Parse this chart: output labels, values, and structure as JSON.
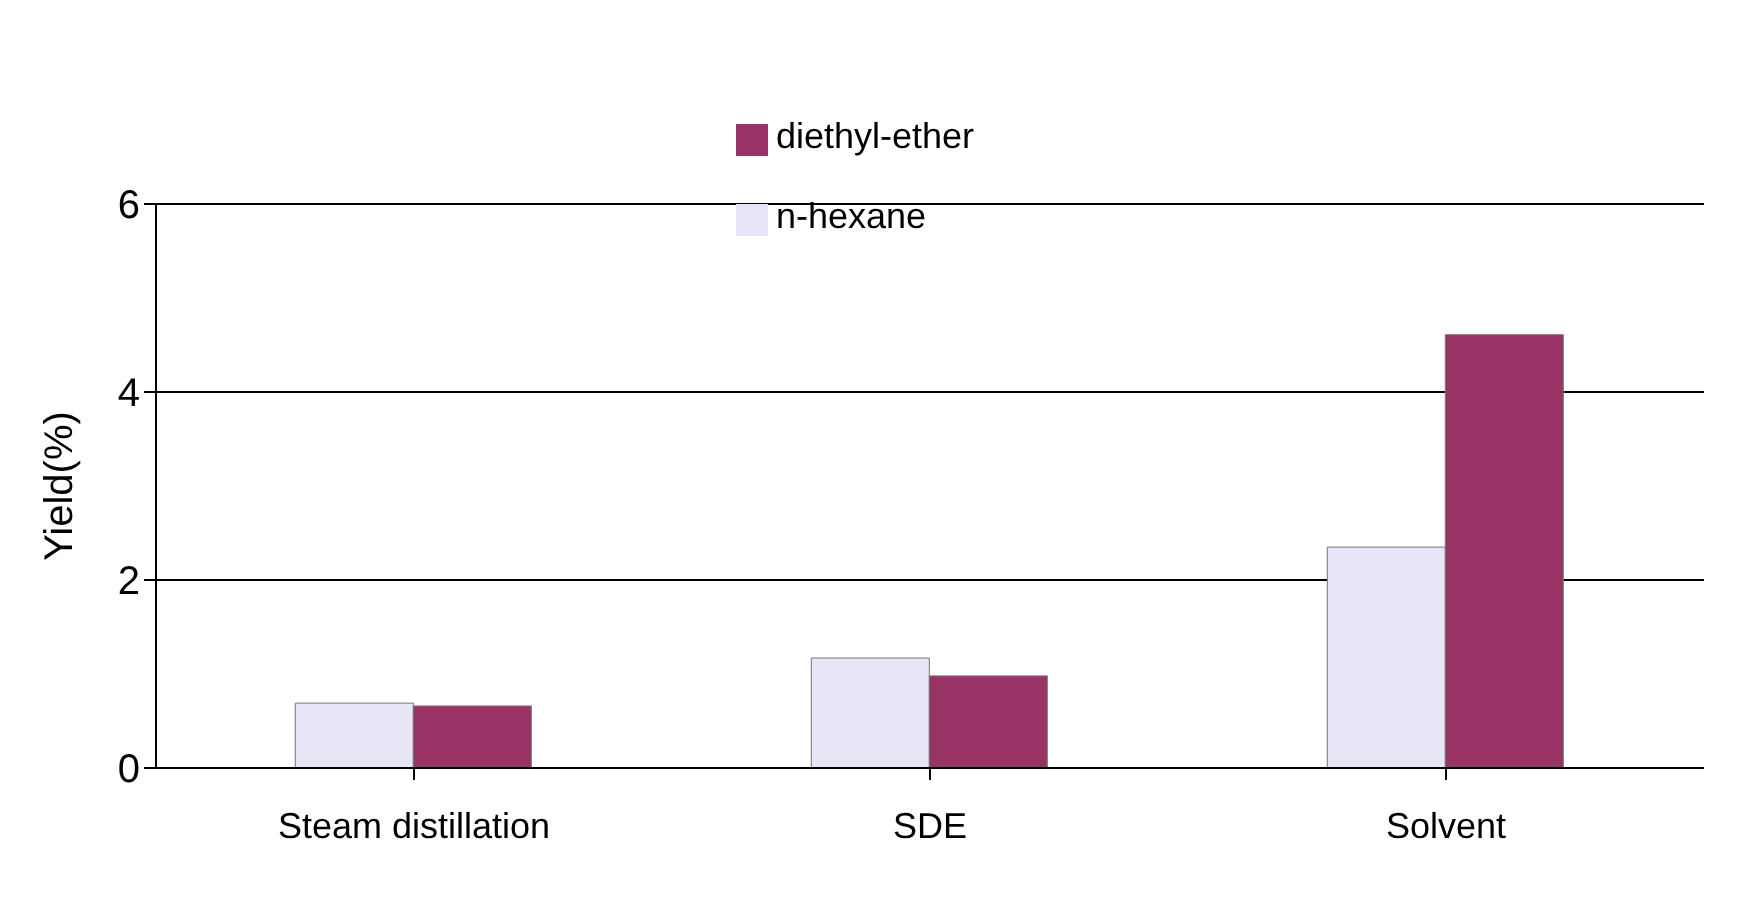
{
  "chart_data": {
    "type": "bar",
    "ylabel": "Yield(%)",
    "categories": [
      "Steam distillation",
      "SDE",
      "Solvent"
    ],
    "series": [
      {
        "name": "n-hexane",
        "color": "#e6e6f7",
        "values": [
          0.69,
          1.17,
          2.35
        ]
      },
      {
        "name": "diethyl-ether",
        "color": "#993366",
        "values": [
          0.66,
          0.98,
          4.61
        ]
      }
    ],
    "ylim": [
      0,
      6
    ],
    "yticks": [
      0,
      2,
      4,
      6
    ],
    "grid": "y",
    "legend": "top"
  }
}
